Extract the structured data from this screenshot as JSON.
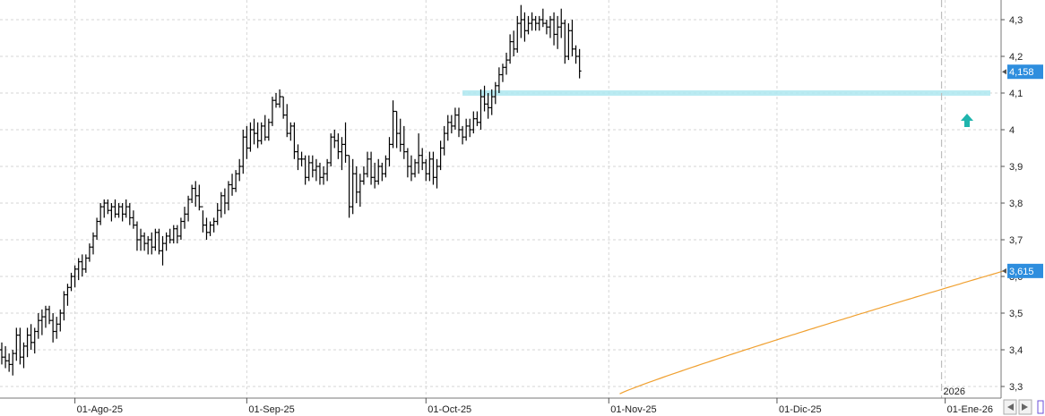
{
  "chart_data": {
    "type": "ohlc",
    "y_ticks": [
      "3,3",
      "3,4",
      "3,5",
      "3,6",
      "3,7",
      "3,8",
      "3,9",
      "4",
      "4,1",
      "4,2",
      "4,3"
    ],
    "ylim": [
      3.28,
      4.36
    ],
    "x_labels": [
      {
        "label": "01-Ago-25",
        "bar": 20
      },
      {
        "label": "01-Sep-25",
        "bar": 67
      },
      {
        "label": "01-Oct-25",
        "bar": 116
      },
      {
        "label": "01-Nov-25",
        "bar": 166
      },
      {
        "label": "01-Dic-25",
        "bar": 212
      },
      {
        "label": "01-Ene-26",
        "bar": 258
      }
    ],
    "year_marker": {
      "label": "2026",
      "bar": 257
    },
    "current_price": {
      "value": 4.158,
      "label": "4,158"
    },
    "ma_price": {
      "value": 3.615,
      "label": "3,615"
    },
    "resistance_level": 4.1,
    "moving_average": {
      "start_bar": 169,
      "start_value": 3.28,
      "end_bar": 274,
      "end_value": 3.615
    },
    "grid": true,
    "colors": {
      "bars": "#000000",
      "moving_average": "#f0a030",
      "resistance": "#aee8f0",
      "badge": "#2e8ede",
      "arrow": "#1fb5ad",
      "grid": "#d6d6d6"
    },
    "bars": [
      [
        3.4,
        3.42,
        3.36,
        3.38
      ],
      [
        3.38,
        3.41,
        3.35,
        3.37
      ],
      [
        3.37,
        3.39,
        3.34,
        3.36
      ],
      [
        3.36,
        3.4,
        3.33,
        3.39
      ],
      [
        3.39,
        3.46,
        3.37,
        3.44
      ],
      [
        3.44,
        3.46,
        3.36,
        3.38
      ],
      [
        3.38,
        3.42,
        3.35,
        3.41
      ],
      [
        3.41,
        3.46,
        3.38,
        3.44
      ],
      [
        3.44,
        3.47,
        3.4,
        3.42
      ],
      [
        3.42,
        3.46,
        3.39,
        3.45
      ],
      [
        3.45,
        3.5,
        3.43,
        3.48
      ],
      [
        3.48,
        3.51,
        3.44,
        3.49
      ],
      [
        3.49,
        3.52,
        3.46,
        3.51
      ],
      [
        3.51,
        3.52,
        3.47,
        3.48
      ],
      [
        3.48,
        3.5,
        3.42,
        3.45
      ],
      [
        3.45,
        3.49,
        3.43,
        3.47
      ],
      [
        3.47,
        3.51,
        3.45,
        3.5
      ],
      [
        3.5,
        3.56,
        3.48,
        3.55
      ],
      [
        3.55,
        3.58,
        3.52,
        3.57
      ],
      [
        3.57,
        3.61,
        3.56,
        3.6
      ],
      [
        3.6,
        3.63,
        3.57,
        3.62
      ],
      [
        3.62,
        3.65,
        3.59,
        3.64
      ],
      [
        3.64,
        3.66,
        3.6,
        3.62
      ],
      [
        3.62,
        3.66,
        3.61,
        3.65
      ],
      [
        3.65,
        3.69,
        3.64,
        3.68
      ],
      [
        3.68,
        3.72,
        3.66,
        3.71
      ],
      [
        3.71,
        3.76,
        3.7,
        3.75
      ],
      [
        3.75,
        3.8,
        3.74,
        3.79
      ],
      [
        3.79,
        3.81,
        3.76,
        3.8
      ],
      [
        3.8,
        3.81,
        3.77,
        3.78
      ],
      [
        3.78,
        3.8,
        3.75,
        3.79
      ],
      [
        3.79,
        3.81,
        3.76,
        3.77
      ],
      [
        3.77,
        3.8,
        3.76,
        3.79
      ],
      [
        3.79,
        3.8,
        3.75,
        3.77
      ],
      [
        3.77,
        3.81,
        3.76,
        3.79
      ],
      [
        3.79,
        3.8,
        3.74,
        3.76
      ],
      [
        3.76,
        3.78,
        3.73,
        3.74
      ],
      [
        3.74,
        3.75,
        3.67,
        3.7
      ],
      [
        3.7,
        3.73,
        3.67,
        3.71
      ],
      [
        3.71,
        3.72,
        3.67,
        3.69
      ],
      [
        3.69,
        3.71,
        3.66,
        3.7
      ],
      [
        3.7,
        3.72,
        3.66,
        3.68
      ],
      [
        3.68,
        3.73,
        3.67,
        3.72
      ],
      [
        3.72,
        3.73,
        3.66,
        3.67
      ],
      [
        3.67,
        3.71,
        3.63,
        3.69
      ],
      [
        3.69,
        3.72,
        3.67,
        3.71
      ],
      [
        3.71,
        3.73,
        3.69,
        3.7
      ],
      [
        3.7,
        3.74,
        3.69,
        3.73
      ],
      [
        3.73,
        3.74,
        3.69,
        3.71
      ],
      [
        3.71,
        3.76,
        3.7,
        3.75
      ],
      [
        3.75,
        3.79,
        3.73,
        3.77
      ],
      [
        3.77,
        3.82,
        3.75,
        3.81
      ],
      [
        3.81,
        3.85,
        3.8,
        3.84
      ],
      [
        3.84,
        3.86,
        3.79,
        3.82
      ],
      [
        3.82,
        3.85,
        3.78,
        3.79
      ],
      [
        3.79,
        3.78,
        3.72,
        3.74
      ],
      [
        3.74,
        3.76,
        3.7,
        3.72
      ],
      [
        3.72,
        3.75,
        3.71,
        3.74
      ],
      [
        3.74,
        3.76,
        3.72,
        3.75
      ],
      [
        3.75,
        3.8,
        3.74,
        3.78
      ],
      [
        3.78,
        3.83,
        3.76,
        3.82
      ],
      [
        3.82,
        3.84,
        3.77,
        3.8
      ],
      [
        3.8,
        3.86,
        3.78,
        3.85
      ],
      [
        3.85,
        3.88,
        3.82,
        3.84
      ],
      [
        3.84,
        3.89,
        3.83,
        3.88
      ],
      [
        3.88,
        3.92,
        3.86,
        3.9
      ],
      [
        3.9,
        4.0,
        3.88,
        3.98
      ],
      [
        3.98,
        4.01,
        3.92,
        3.95
      ],
      [
        3.95,
        4.02,
        3.94,
        4.0
      ],
      [
        4.0,
        4.03,
        3.96,
        3.99
      ],
      [
        3.99,
        4.02,
        3.95,
        3.97
      ],
      [
        3.97,
        4.02,
        3.96,
        4.01
      ],
      [
        4.01,
        4.04,
        3.97,
        3.98
      ],
      [
        3.98,
        4.03,
        3.97,
        4.02
      ],
      [
        4.02,
        4.09,
        4.01,
        4.08
      ],
      [
        4.08,
        4.1,
        4.06,
        4.07
      ],
      [
        4.07,
        4.11,
        4.06,
        4.09
      ],
      [
        4.09,
        4.09,
        4.03,
        4.04
      ],
      [
        4.04,
        4.07,
        3.98,
        3.99
      ],
      [
        3.99,
        4.02,
        3.97,
        4.01
      ],
      [
        4.01,
        4.02,
        3.92,
        3.94
      ],
      [
        3.94,
        3.96,
        3.89,
        3.92
      ],
      [
        3.92,
        3.94,
        3.9,
        3.92
      ],
      [
        3.92,
        3.93,
        3.85,
        3.87
      ],
      [
        3.87,
        3.93,
        3.86,
        3.91
      ],
      [
        3.91,
        3.93,
        3.87,
        3.89
      ],
      [
        3.89,
        3.92,
        3.86,
        3.9
      ],
      [
        3.9,
        3.91,
        3.85,
        3.87
      ],
      [
        3.87,
        3.9,
        3.85,
        3.88
      ],
      [
        3.88,
        3.92,
        3.86,
        3.91
      ],
      [
        3.91,
        3.99,
        3.9,
        3.98
      ],
      [
        3.98,
        4.0,
        3.95,
        3.97
      ],
      [
        3.97,
        3.99,
        3.92,
        3.94
      ],
      [
        3.94,
        3.98,
        3.89,
        3.96
      ],
      [
        3.96,
        4.02,
        3.91,
        3.93
      ],
      [
        3.93,
        3.93,
        3.76,
        3.79
      ],
      [
        3.79,
        3.92,
        3.77,
        3.88
      ],
      [
        3.88,
        3.9,
        3.8,
        3.83
      ],
      [
        3.83,
        3.88,
        3.79,
        3.86
      ],
      [
        3.86,
        3.9,
        3.85,
        3.88
      ],
      [
        3.88,
        3.94,
        3.87,
        3.92
      ],
      [
        3.92,
        3.94,
        3.85,
        3.87
      ],
      [
        3.87,
        3.91,
        3.84,
        3.86
      ],
      [
        3.86,
        3.92,
        3.85,
        3.9
      ],
      [
        3.9,
        3.91,
        3.86,
        3.88
      ],
      [
        3.88,
        3.93,
        3.87,
        3.92
      ],
      [
        3.92,
        3.98,
        3.9,
        3.96
      ],
      [
        3.96,
        4.08,
        3.95,
        4.05
      ],
      [
        4.05,
        4.05,
        3.95,
        3.99
      ],
      [
        3.99,
        4.03,
        3.94,
        3.96
      ],
      [
        3.96,
        4.01,
        3.92,
        3.94
      ],
      [
        3.94,
        3.95,
        3.87,
        3.9
      ],
      [
        3.9,
        3.93,
        3.86,
        3.88
      ],
      [
        3.88,
        3.92,
        3.87,
        3.91
      ],
      [
        3.91,
        3.99,
        3.88,
        3.93
      ],
      [
        3.93,
        3.95,
        3.89,
        3.91
      ],
      [
        3.91,
        3.92,
        3.86,
        3.88
      ],
      [
        3.88,
        3.94,
        3.86,
        3.92
      ],
      [
        3.92,
        3.94,
        3.85,
        3.87
      ],
      [
        3.87,
        3.92,
        3.84,
        3.9
      ],
      [
        3.9,
        3.97,
        3.89,
        3.95
      ],
      [
        3.95,
        4.01,
        3.93,
        3.99
      ],
      [
        3.99,
        4.04,
        3.97,
        4.02
      ],
      [
        4.02,
        4.04,
        3.99,
        4.01
      ],
      [
        4.01,
        4.06,
        4.0,
        4.04
      ],
      [
        4.04,
        4.06,
        3.98,
        4.0
      ],
      [
        4.0,
        4.01,
        3.96,
        3.98
      ],
      [
        3.98,
        4.03,
        3.97,
        4.01
      ],
      [
        4.01,
        4.03,
        3.98,
        4.0
      ],
      [
        4.0,
        4.05,
        3.99,
        4.03
      ],
      [
        4.03,
        4.05,
        4.01,
        4.02
      ],
      [
        4.02,
        4.11,
        4.0,
        4.09
      ],
      [
        4.09,
        4.12,
        4.05,
        4.07
      ],
      [
        4.07,
        4.1,
        4.03,
        4.06
      ],
      [
        4.06,
        4.11,
        4.04,
        4.09
      ],
      [
        4.09,
        4.13,
        4.07,
        4.12
      ],
      [
        4.12,
        4.17,
        4.1,
        4.15
      ],
      [
        4.15,
        4.18,
        4.13,
        4.17
      ],
      [
        4.17,
        4.21,
        4.15,
        4.19
      ],
      [
        4.19,
        4.26,
        4.18,
        4.24
      ],
      [
        4.24,
        4.27,
        4.2,
        4.22
      ],
      [
        4.22,
        4.31,
        4.21,
        4.29
      ],
      [
        4.29,
        4.34,
        4.25,
        4.3
      ],
      [
        4.3,
        4.32,
        4.24,
        4.27
      ],
      [
        4.27,
        4.31,
        4.26,
        4.29
      ],
      [
        4.29,
        4.32,
        4.27,
        4.3
      ],
      [
        4.3,
        4.31,
        4.27,
        4.29
      ],
      [
        4.29,
        4.31,
        4.27,
        4.3
      ],
      [
        4.3,
        4.33,
        4.28,
        4.29
      ],
      [
        4.29,
        4.3,
        4.26,
        4.28
      ],
      [
        4.28,
        4.31,
        4.25,
        4.3
      ],
      [
        4.3,
        4.32,
        4.23,
        4.26
      ],
      [
        4.26,
        4.31,
        4.22,
        4.28
      ],
      [
        4.28,
        4.33,
        4.25,
        4.29
      ],
      [
        4.29,
        4.3,
        4.18,
        4.2
      ],
      [
        4.2,
        4.29,
        4.19,
        4.27
      ],
      [
        4.27,
        4.3,
        4.2,
        4.22
      ],
      [
        4.22,
        4.23,
        4.18,
        4.2
      ],
      [
        4.2,
        4.22,
        4.14,
        4.16
      ]
    ]
  }
}
